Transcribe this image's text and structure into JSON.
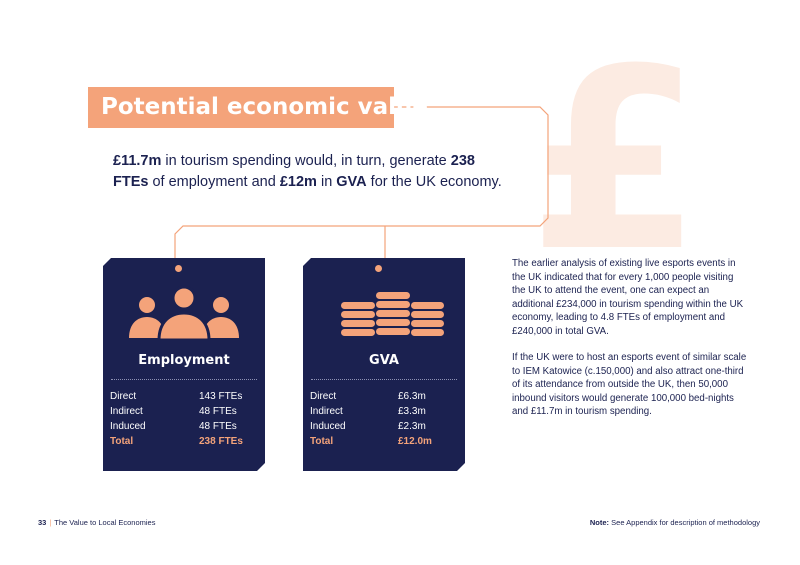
{
  "title": "Potential economic value",
  "intro": {
    "part1_bold": "£11.7m",
    "part2": " in tourism spending would, in turn, generate ",
    "part3_bold": "238 FTEs",
    "part4": " of employment and ",
    "part5_bold": "£12m",
    "part6": " in ",
    "part7_bold": "GVA",
    "part8": " for the UK economy."
  },
  "employment": {
    "icon": "people-group-icon",
    "title": "Employment",
    "rows": [
      {
        "label": "Direct",
        "value": "143 FTEs"
      },
      {
        "label": "Indirect",
        "value": "48 FTEs"
      },
      {
        "label": "Induced",
        "value": "48 FTEs"
      },
      {
        "label": "Total",
        "value": "238 FTEs"
      }
    ]
  },
  "gva": {
    "icon": "coin-stacks-icon",
    "title": "GVA",
    "rows": [
      {
        "label": "Direct",
        "value": "£6.3m"
      },
      {
        "label": "Indirect",
        "value": "£3.3m"
      },
      {
        "label": "Induced",
        "value": "£2.3m"
      },
      {
        "label": "Total",
        "value": "£12.0m"
      }
    ]
  },
  "body": {
    "p1": "The earlier analysis of existing live esports events in the UK indicated that for every 1,000 people visiting the UK to attend the event, one can expect an additional £234,000 in tourism spending within the UK economy, leading to 4.8 FTEs of employment and £240,000 in total GVA.",
    "p2": "If the UK were to host an esports event of similar scale to IEM Katowice (c.150,000) and also attract one-third of its attendance from outside the UK, then 50,000 inbound visitors would generate 100,000 bed-nights and £11.7m in tourism spending."
  },
  "footer": {
    "page_number": "33",
    "separator": "|",
    "section": "The Value to Local Economies",
    "note_label": "Note:",
    "note_text": " See Appendix for description of methodology"
  },
  "colors": {
    "navy": "#1b2150",
    "accent": "#f4a37a",
    "watermark": "#fcebe2"
  },
  "watermark_symbol": "£"
}
